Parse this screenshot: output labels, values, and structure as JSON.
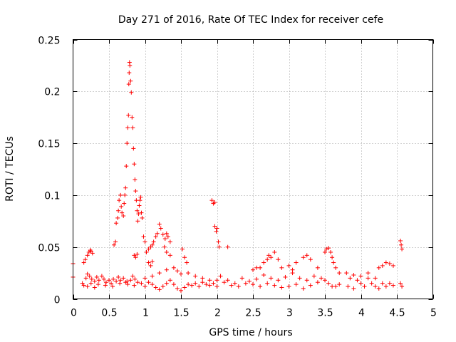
{
  "chart_data": {
    "type": "scatter",
    "title": "Day 271 of 2016, Rate Of TEC Index for receiver cefe",
    "xlabel": "GPS time / hours",
    "ylabel": "ROTI / TECUs",
    "xlim": [
      0,
      5
    ],
    "ylim": [
      0,
      0.25
    ],
    "xticks": [
      0,
      0.5,
      1,
      1.5,
      2,
      2.5,
      3,
      3.5,
      4,
      4.5,
      5
    ],
    "xtick_labels": [
      "0",
      "0.5",
      "1",
      "1.5",
      "2",
      "2.5",
      "3",
      "3.5",
      "4",
      "4.5",
      "5"
    ],
    "yticks": [
      0,
      0.05,
      0.1,
      0.15,
      0.2,
      0.25
    ],
    "ytick_labels": [
      "0",
      "0.05",
      "0.1",
      "0.15",
      "0.2",
      "0.25"
    ],
    "grid": true,
    "marker": "+",
    "color": "#ff0000",
    "series": [
      {
        "name": "ROTI",
        "points": [
          [
            0.0,
            0.034
          ],
          [
            0.0,
            0.021
          ],
          [
            0.15,
            0.035
          ],
          [
            0.17,
            0.038
          ],
          [
            0.2,
            0.042
          ],
          [
            0.22,
            0.045
          ],
          [
            0.24,
            0.047
          ],
          [
            0.25,
            0.046
          ],
          [
            0.27,
            0.044
          ],
          [
            0.13,
            0.015
          ],
          [
            0.15,
            0.013
          ],
          [
            0.18,
            0.02
          ],
          [
            0.2,
            0.024
          ],
          [
            0.23,
            0.022
          ],
          [
            0.26,
            0.019
          ],
          [
            0.3,
            0.017
          ],
          [
            0.33,
            0.021
          ],
          [
            0.36,
            0.018
          ],
          [
            0.4,
            0.022
          ],
          [
            0.43,
            0.019
          ],
          [
            0.46,
            0.016
          ],
          [
            0.5,
            0.018
          ],
          [
            0.53,
            0.015
          ],
          [
            0.56,
            0.019
          ],
          [
            0.6,
            0.017
          ],
          [
            0.63,
            0.021
          ],
          [
            0.66,
            0.018
          ],
          [
            0.7,
            0.02
          ],
          [
            0.73,
            0.016
          ],
          [
            0.76,
            0.014
          ],
          [
            0.8,
            0.018
          ],
          [
            0.83,
            0.022
          ],
          [
            0.86,
            0.019
          ],
          [
            0.9,
            0.016
          ],
          [
            0.2,
            0.012
          ],
          [
            0.25,
            0.015
          ],
          [
            0.3,
            0.011
          ],
          [
            0.35,
            0.014
          ],
          [
            0.45,
            0.013
          ],
          [
            0.55,
            0.012
          ],
          [
            0.65,
            0.015
          ],
          [
            0.75,
            0.017
          ],
          [
            0.85,
            0.013
          ],
          [
            0.95,
            0.015
          ],
          [
            1.0,
            0.012
          ],
          [
            0.57,
            0.052
          ],
          [
            0.59,
            0.055
          ],
          [
            0.6,
            0.073
          ],
          [
            0.62,
            0.078
          ],
          [
            0.63,
            0.085
          ],
          [
            0.64,
            0.095
          ],
          [
            0.66,
            0.1
          ],
          [
            0.67,
            0.089
          ],
          [
            0.68,
            0.083
          ],
          [
            0.7,
            0.08
          ],
          [
            0.71,
            0.092
          ],
          [
            0.72,
            0.1
          ],
          [
            0.73,
            0.107
          ],
          [
            0.74,
            0.128
          ],
          [
            0.75,
            0.15
          ],
          [
            0.76,
            0.165
          ],
          [
            0.77,
            0.177
          ],
          [
            0.775,
            0.207
          ],
          [
            0.78,
            0.218
          ],
          [
            0.785,
            0.228
          ],
          [
            0.79,
            0.225
          ],
          [
            0.8,
            0.21
          ],
          [
            0.81,
            0.199
          ],
          [
            0.82,
            0.175
          ],
          [
            0.83,
            0.165
          ],
          [
            0.84,
            0.145
          ],
          [
            0.85,
            0.13
          ],
          [
            0.86,
            0.115
          ],
          [
            0.87,
            0.104
          ],
          [
            0.88,
            0.095
          ],
          [
            0.89,
            0.085
          ],
          [
            0.9,
            0.075
          ],
          [
            0.91,
            0.082
          ],
          [
            0.92,
            0.09
          ],
          [
            0.93,
            0.095
          ],
          [
            0.94,
            0.098
          ],
          [
            0.95,
            0.083
          ],
          [
            0.96,
            0.078
          ],
          [
            0.85,
            0.042
          ],
          [
            0.87,
            0.04
          ],
          [
            0.89,
            0.043
          ],
          [
            0.98,
            0.06
          ],
          [
            1.0,
            0.055
          ],
          [
            1.02,
            0.045
          ],
          [
            1.05,
            0.048
          ],
          [
            1.08,
            0.05
          ],
          [
            1.1,
            0.052
          ],
          [
            1.12,
            0.055
          ],
          [
            1.15,
            0.06
          ],
          [
            1.17,
            0.063
          ],
          [
            1.2,
            0.072
          ],
          [
            1.22,
            0.068
          ],
          [
            1.25,
            0.062
          ],
          [
            1.28,
            0.058
          ],
          [
            1.3,
            0.063
          ],
          [
            1.32,
            0.06
          ],
          [
            1.35,
            0.055
          ],
          [
            1.05,
            0.035
          ],
          [
            1.08,
            0.032
          ],
          [
            1.1,
            0.036
          ],
          [
            1.27,
            0.05
          ],
          [
            1.3,
            0.045
          ],
          [
            1.35,
            0.042
          ],
          [
            1.0,
            0.02
          ],
          [
            1.05,
            0.016
          ],
          [
            1.1,
            0.014
          ],
          [
            1.15,
            0.011
          ],
          [
            1.2,
            0.009
          ],
          [
            1.25,
            0.012
          ],
          [
            1.3,
            0.015
          ],
          [
            1.35,
            0.018
          ],
          [
            1.4,
            0.014
          ],
          [
            1.45,
            0.01
          ],
          [
            1.5,
            0.008
          ],
          [
            1.55,
            0.011
          ],
          [
            1.6,
            0.014
          ],
          [
            1.65,
            0.013
          ],
          [
            1.7,
            0.015
          ],
          [
            1.75,
            0.012
          ],
          [
            1.8,
            0.016
          ],
          [
            1.85,
            0.014
          ],
          [
            1.9,
            0.013
          ],
          [
            1.95,
            0.015
          ],
          [
            2.0,
            0.012
          ],
          [
            1.1,
            0.022
          ],
          [
            1.2,
            0.025
          ],
          [
            1.3,
            0.028
          ],
          [
            1.4,
            0.03
          ],
          [
            1.45,
            0.027
          ],
          [
            1.5,
            0.024
          ],
          [
            1.52,
            0.048
          ],
          [
            1.55,
            0.04
          ],
          [
            1.58,
            0.035
          ],
          [
            1.6,
            0.025
          ],
          [
            1.7,
            0.022
          ],
          [
            1.8,
            0.02
          ],
          [
            1.9,
            0.018
          ],
          [
            1.93,
            0.095
          ],
          [
            1.95,
            0.092
          ],
          [
            1.97,
            0.093
          ],
          [
            1.97,
            0.07
          ],
          [
            1.99,
            0.065
          ],
          [
            2.0,
            0.068
          ],
          [
            2.02,
            0.055
          ],
          [
            2.03,
            0.05
          ],
          [
            2.15,
            0.05
          ],
          [
            2.0,
            0.018
          ],
          [
            2.1,
            0.016
          ],
          [
            2.2,
            0.013
          ],
          [
            2.3,
            0.012
          ],
          [
            2.4,
            0.015
          ],
          [
            2.5,
            0.014
          ],
          [
            2.6,
            0.012
          ],
          [
            2.7,
            0.015
          ],
          [
            2.8,
            0.013
          ],
          [
            2.9,
            0.011
          ],
          [
            3.0,
            0.012
          ],
          [
            3.1,
            0.014
          ],
          [
            3.2,
            0.01
          ],
          [
            3.3,
            0.013
          ],
          [
            3.4,
            0.016
          ],
          [
            3.5,
            0.018
          ],
          [
            3.6,
            0.012
          ],
          [
            3.7,
            0.014
          ],
          [
            2.05,
            0.022
          ],
          [
            2.15,
            0.018
          ],
          [
            2.25,
            0.015
          ],
          [
            2.35,
            0.02
          ],
          [
            2.45,
            0.017
          ],
          [
            2.55,
            0.019
          ],
          [
            2.65,
            0.023
          ],
          [
            2.75,
            0.02
          ],
          [
            2.85,
            0.018
          ],
          [
            2.95,
            0.021
          ],
          [
            3.05,
            0.025
          ],
          [
            3.15,
            0.02
          ],
          [
            3.25,
            0.018
          ],
          [
            3.35,
            0.022
          ],
          [
            3.45,
            0.02
          ],
          [
            3.55,
            0.015
          ],
          [
            3.65,
            0.012
          ],
          [
            2.6,
            0.03
          ],
          [
            2.65,
            0.035
          ],
          [
            2.7,
            0.038
          ],
          [
            2.72,
            0.042
          ],
          [
            2.75,
            0.04
          ],
          [
            2.8,
            0.045
          ],
          [
            2.85,
            0.038
          ],
          [
            2.9,
            0.03
          ],
          [
            3.0,
            0.032
          ],
          [
            3.05,
            0.028
          ],
          [
            3.1,
            0.035
          ],
          [
            3.2,
            0.04
          ],
          [
            3.25,
            0.042
          ],
          [
            3.3,
            0.038
          ],
          [
            3.4,
            0.03
          ],
          [
            3.5,
            0.045
          ],
          [
            3.52,
            0.048
          ],
          [
            3.55,
            0.049
          ],
          [
            3.58,
            0.045
          ],
          [
            3.6,
            0.04
          ],
          [
            3.62,
            0.035
          ],
          [
            3.65,
            0.03
          ],
          [
            3.7,
            0.025
          ],
          [
            2.5,
            0.028
          ],
          [
            2.55,
            0.03
          ],
          [
            3.8,
            0.025
          ],
          [
            3.85,
            0.02
          ],
          [
            3.9,
            0.023
          ],
          [
            3.95,
            0.018
          ],
          [
            4.0,
            0.015
          ],
          [
            4.05,
            0.012
          ],
          [
            4.1,
            0.02
          ],
          [
            4.15,
            0.015
          ],
          [
            4.2,
            0.012
          ],
          [
            4.25,
            0.01
          ],
          [
            4.3,
            0.015
          ],
          [
            4.35,
            0.012
          ],
          [
            4.4,
            0.015
          ],
          [
            4.45,
            0.013
          ],
          [
            3.82,
            0.012
          ],
          [
            3.9,
            0.01
          ],
          [
            4.0,
            0.022
          ],
          [
            4.1,
            0.025
          ],
          [
            4.2,
            0.02
          ],
          [
            4.25,
            0.03
          ],
          [
            4.3,
            0.032
          ],
          [
            4.35,
            0.035
          ],
          [
            4.4,
            0.034
          ],
          [
            4.45,
            0.032
          ],
          [
            4.55,
            0.056
          ],
          [
            4.56,
            0.052
          ],
          [
            4.57,
            0.048
          ],
          [
            4.55,
            0.015
          ],
          [
            4.57,
            0.012
          ]
        ]
      }
    ]
  }
}
